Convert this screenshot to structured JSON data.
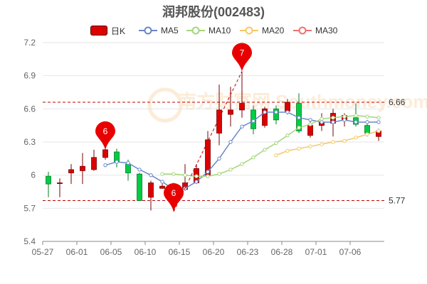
{
  "title_name": "润邦股份",
  "title_code": "(002483)",
  "legend": {
    "kline": "日K",
    "ma5": "MA5",
    "ma10": "MA10",
    "ma20": "MA20",
    "ma30": "MA30"
  },
  "colors": {
    "up": "#dd0000",
    "down": "#00cc44",
    "ma5": "#6a86c8",
    "ma10": "#a3d67a",
    "ma20": "#f5c866",
    "ma30": "#f07070",
    "refline": "#c00000",
    "pin": "#e80000"
  },
  "watermark": "南方财富网 Southmoney.com",
  "chart_data": {
    "type": "candlestick",
    "y_ticks": [
      "5.4",
      "5.7",
      "6",
      "6.3",
      "6.6",
      "6.9",
      "7.2"
    ],
    "ylim": [
      5.4,
      7.2
    ],
    "x_tick_labels": [
      "05-27",
      "06-01",
      "06-05",
      "06-10",
      "06-15",
      "06-20",
      "06-23",
      "06-28",
      "07-01",
      "07-06"
    ],
    "x_tick_index": [
      0,
      3,
      6,
      9,
      12,
      15,
      18,
      21,
      24,
      27
    ],
    "candles": [
      {
        "o": 5.99,
        "c": 5.92,
        "h": 6.03,
        "l": 5.8
      },
      {
        "o": 5.93,
        "c": 5.93,
        "h": 5.97,
        "l": 5.8
      },
      {
        "o": 6.02,
        "c": 6.05,
        "h": 6.1,
        "l": 5.92
      },
      {
        "o": 6.04,
        "c": 6.08,
        "h": 6.2,
        "l": 5.92
      },
      {
        "o": 6.05,
        "c": 6.16,
        "h": 6.23,
        "l": 6.04
      },
      {
        "o": 6.16,
        "c": 6.23,
        "h": 6.4,
        "l": 6.14
      },
      {
        "o": 6.21,
        "c": 6.12,
        "h": 6.24,
        "l": 6.07
      },
      {
        "o": 6.1,
        "c": 6.02,
        "h": 6.14,
        "l": 5.95
      },
      {
        "o": 6.01,
        "c": 5.77,
        "h": 6.02,
        "l": 5.77
      },
      {
        "o": 5.8,
        "c": 5.93,
        "h": 5.95,
        "l": 5.68
      },
      {
        "o": 5.88,
        "c": 5.9,
        "h": 5.95,
        "l": 5.88
      },
      {
        "o": 5.8,
        "c": 5.86,
        "h": 5.93,
        "l": 5.67
      },
      {
        "o": 5.87,
        "c": 5.93,
        "h": 6.1,
        "l": 5.86
      },
      {
        "o": 5.93,
        "c": 6.06,
        "h": 6.1,
        "l": 5.92
      },
      {
        "o": 6.0,
        "c": 6.32,
        "h": 6.4,
        "l": 5.99
      },
      {
        "o": 6.38,
        "c": 6.59,
        "h": 6.82,
        "l": 6.27
      },
      {
        "o": 6.55,
        "c": 6.59,
        "h": 6.8,
        "l": 6.44
      },
      {
        "o": 6.59,
        "c": 6.65,
        "h": 6.94,
        "l": 6.52
      },
      {
        "o": 6.59,
        "c": 6.42,
        "h": 6.63,
        "l": 6.37
      },
      {
        "o": 6.45,
        "c": 6.6,
        "h": 6.62,
        "l": 6.43
      },
      {
        "o": 6.6,
        "c": 6.5,
        "h": 6.63,
        "l": 6.46
      },
      {
        "o": 6.58,
        "c": 6.66,
        "h": 6.69,
        "l": 6.55
      },
      {
        "o": 6.65,
        "c": 6.4,
        "h": 6.74,
        "l": 6.38
      },
      {
        "o": 6.36,
        "c": 6.45,
        "h": 6.5,
        "l": 6.34
      },
      {
        "o": 6.45,
        "c": 6.48,
        "h": 6.56,
        "l": 6.4
      },
      {
        "o": 6.47,
        "c": 6.56,
        "h": 6.6,
        "l": 6.35
      },
      {
        "o": 6.5,
        "c": 6.54,
        "h": 6.56,
        "l": 6.44
      },
      {
        "o": 6.52,
        "c": 6.46,
        "h": 6.65,
        "l": 6.44
      },
      {
        "o": 6.45,
        "c": 6.38,
        "h": 6.5,
        "l": 6.35
      },
      {
        "o": 6.35,
        "c": 6.4,
        "h": 6.42,
        "l": 6.31
      }
    ],
    "series": [
      {
        "name": "MA5",
        "start": 5,
        "values": [
          6.09,
          6.12,
          6.11,
          6.05,
          6.0,
          5.94,
          5.87,
          5.88,
          5.94,
          6.03,
          6.15,
          6.3,
          6.44,
          6.49,
          6.57,
          6.57,
          6.57,
          6.52,
          6.5,
          6.48,
          6.48,
          6.5,
          6.48,
          6.48,
          6.48
        ]
      },
      {
        "name": "MA10",
        "start": 10,
        "values": [
          6.01,
          6.01,
          6.0,
          5.99,
          5.99,
          6.01,
          6.05,
          6.1,
          6.16,
          6.23,
          6.29,
          6.36,
          6.43,
          6.46,
          6.51,
          6.52,
          6.53,
          6.54,
          6.53,
          6.52
        ]
      },
      {
        "name": "MA20",
        "start": 20,
        "values": [
          6.18,
          6.22,
          6.24,
          6.26,
          6.28,
          6.3,
          6.31,
          6.34,
          6.37,
          6.4
        ]
      }
    ],
    "ref_lines": [
      {
        "value": 6.66,
        "label": "6.66"
      },
      {
        "value": 5.77,
        "label": "5.77"
      }
    ],
    "markers": [
      {
        "index": 17,
        "value": 6.94,
        "label": "7"
      },
      {
        "index": 5,
        "value": 6.23,
        "label": "6"
      },
      {
        "index": 11,
        "value": 5.67,
        "label": "6"
      }
    ]
  }
}
